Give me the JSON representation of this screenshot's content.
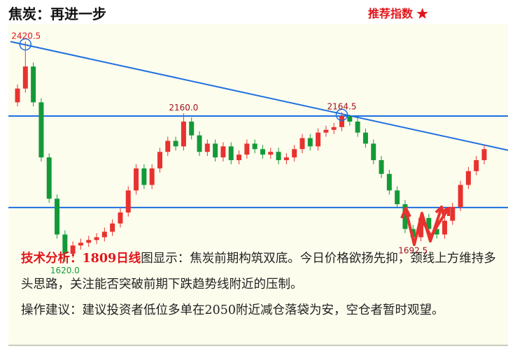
{
  "header": {
    "title": "焦炭：再进一步",
    "rating": "推荐指数 ★"
  },
  "chart_data": {
    "type": "candlestick",
    "open": [
      2200,
      2250,
      2330,
      2200,
      2000,
      1850,
      1720,
      1650,
      1680,
      1690,
      1700,
      1710,
      1730,
      1760,
      1800,
      1880,
      1960,
      1900,
      1960,
      2020,
      2060,
      2040,
      2130,
      2080,
      2020,
      2050,
      2000,
      2040,
      1990,
      2010,
      2050,
      2030,
      2010,
      2020,
      1990,
      2000,
      2030,
      2070,
      2040,
      2090,
      2100,
      2110,
      2150,
      2130,
      2090,
      2050,
      1990,
      1940,
      1880,
      1830,
      1740,
      1710,
      1780,
      1740,
      1720,
      1770,
      1820,
      1900,
      1950,
      1990
    ],
    "high": [
      2265,
      2420.5,
      2345,
      2215,
      2015,
      1865,
      1735,
      1695,
      1705,
      1715,
      1725,
      1745,
      1775,
      1815,
      1895,
      1975,
      1975,
      1975,
      2035,
      2075,
      2075,
      2160,
      2145,
      2095,
      2065,
      2065,
      2055,
      2055,
      2025,
      2065,
      2065,
      2045,
      2035,
      2035,
      2015,
      2045,
      2085,
      2085,
      2105,
      2115,
      2125,
      2164.5,
      2155,
      2145,
      2105,
      2065,
      2005,
      1955,
      1895,
      1845,
      1755,
      1795,
      1795,
      1755,
      1785,
      1835,
      1915,
      1965,
      2005,
      2045
    ],
    "low": [
      2185,
      2235,
      2185,
      1985,
      1835,
      1705,
      1620,
      1635,
      1665,
      1675,
      1685,
      1695,
      1715,
      1745,
      1785,
      1865,
      1885,
      1885,
      1945,
      2005,
      2025,
      2025,
      2065,
      2005,
      2005,
      1985,
      1985,
      1975,
      1975,
      1995,
      2015,
      1995,
      1995,
      1975,
      1975,
      1985,
      2015,
      2025,
      2025,
      2075,
      2085,
      2095,
      2115,
      2075,
      2035,
      1975,
      1925,
      1865,
      1815,
      1725,
      1692.5,
      1695,
      1725,
      1705,
      1705,
      1755,
      1805,
      1885,
      1935,
      1975
    ],
    "close": [
      2250,
      2330,
      2200,
      2000,
      1850,
      1720,
      1650,
      1680,
      1690,
      1700,
      1710,
      1730,
      1760,
      1800,
      1880,
      1960,
      1900,
      1960,
      2020,
      2060,
      2040,
      2130,
      2080,
      2020,
      2050,
      2000,
      2040,
      1990,
      2010,
      2050,
      2030,
      2010,
      2020,
      1990,
      2000,
      2030,
      2070,
      2040,
      2090,
      2100,
      2110,
      2150,
      2130,
      2090,
      2050,
      1990,
      1940,
      1880,
      1830,
      1740,
      1710,
      1780,
      1740,
      1720,
      1770,
      1820,
      1900,
      1950,
      1990,
      2030
    ],
    "up_color": "#e8322f",
    "down_color": "#139a38",
    "ylim": [
      1315,
      2470
    ],
    "hlines": [
      2150,
      1818
    ],
    "trendline": {
      "start": 2420.5,
      "end": 2026
    },
    "line_color": "#1f6fe0",
    "annotations": [
      {
        "value": 2420.5,
        "label": "2420.5",
        "color": "#e0151b"
      },
      {
        "value": 2160,
        "label": "2160.0",
        "color": "#a0101a"
      },
      {
        "value": 2164.5,
        "label": "2164.5",
        "color": "#a0101a"
      },
      {
        "value": 1620,
        "label": "1620.0",
        "color": "#139a38"
      },
      {
        "value": 1692.5,
        "label": "1692.5",
        "color": "#a0101a"
      }
    ]
  },
  "analysis": {
    "label": "技术分析：",
    "contract": "1809日线",
    "text": "图显示：焦炭前期构筑双底。今日价格欲扬先抑，颈线上方维持多头思路，关注能否突破前期下跌趋势线附近的压制。",
    "advice": "操作建议：建议投资者低位多单在2050附近减仓落袋为安，空仓者暂时观望。"
  }
}
